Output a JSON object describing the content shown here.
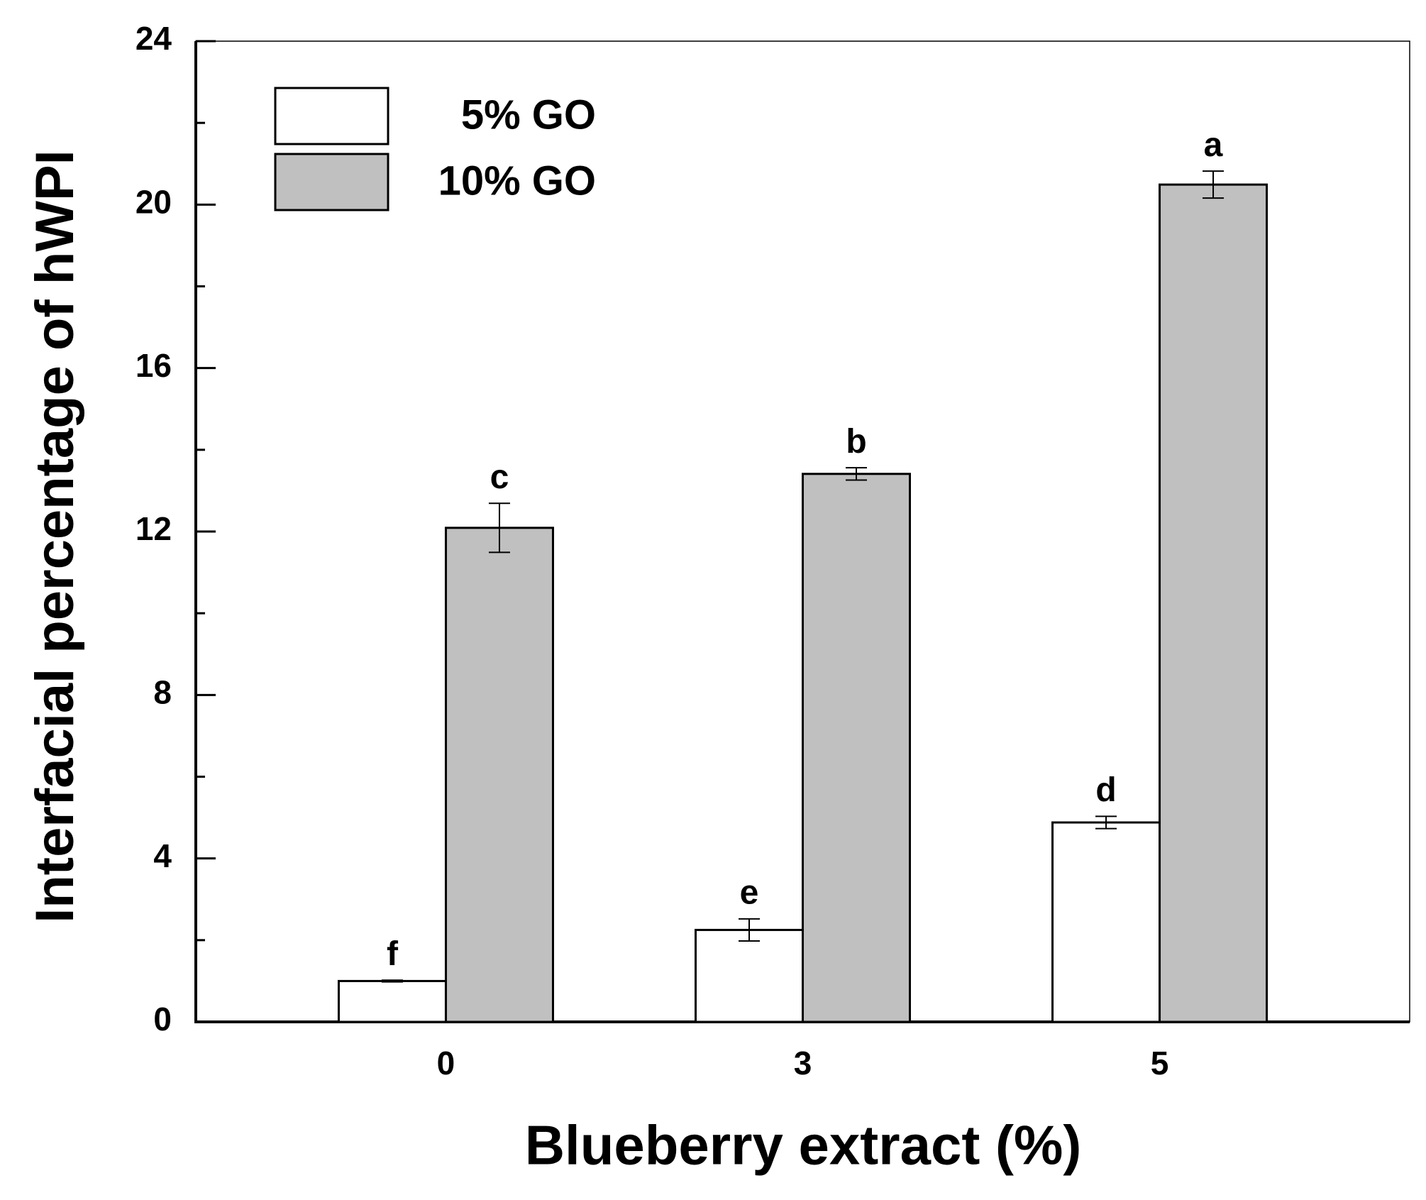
{
  "chart_data": {
    "type": "bar",
    "x_label": "Blueberry extract (%)",
    "y_label": "Interfacial percentage of hWPI",
    "categories": [
      "0",
      "3",
      "5"
    ],
    "series": [
      {
        "name": "5% GO",
        "color": "#ffffff",
        "values": [
          1.0,
          2.25,
          4.88
        ],
        "errors": [
          0.02,
          0.27,
          0.15
        ],
        "letters": [
          "f",
          "e",
          "d"
        ]
      },
      {
        "name": "10% GO",
        "color": "#c0c0c0",
        "values": [
          12.09,
          13.41,
          20.49
        ],
        "errors": [
          0.6,
          0.15,
          0.33
        ],
        "letters": [
          "c",
          "b",
          "a"
        ]
      }
    ],
    "ylim": [
      0,
      24
    ],
    "yticks": [
      0,
      4,
      8,
      12,
      16,
      20,
      24
    ],
    "yminorticks": [
      2,
      6,
      10,
      14,
      18,
      22
    ],
    "legend": "top-left",
    "grid": false
  }
}
